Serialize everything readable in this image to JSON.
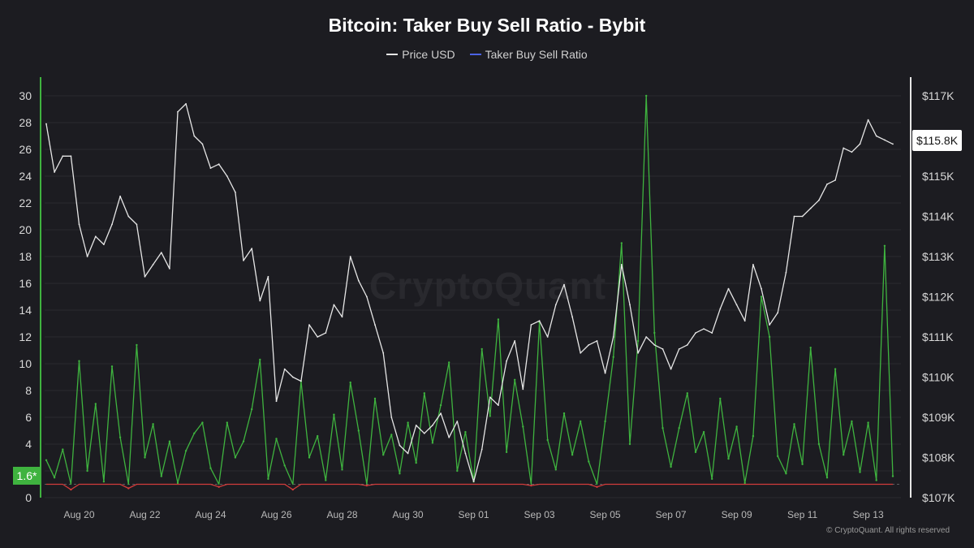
{
  "chart_data": {
    "type": "line",
    "title": "Bitcoin: Taker Buy Sell Ratio - Bybit",
    "legend_position": "top-center",
    "grid": true,
    "watermark": "CryptoQuant",
    "copyright": "© CryptoQuant. All rights reserved",
    "x_ticks": [
      "Aug 20",
      "Aug 22",
      "Aug 24",
      "Aug 26",
      "Aug 28",
      "Aug 30",
      "Sep 01",
      "Sep 03",
      "Sep 05",
      "Sep 07",
      "Sep 09",
      "Sep 11",
      "Sep 13"
    ],
    "x_range": [
      "2025-08-19",
      "2025-09-13"
    ],
    "left_axis": {
      "ticks": [
        "0",
        "2",
        "4",
        "6",
        "8",
        "10",
        "12",
        "14",
        "16",
        "18",
        "20",
        "22",
        "24",
        "26",
        "28",
        "30"
      ],
      "ylim": [
        0,
        30
      ]
    },
    "right_axis": {
      "ticks": [
        "$107K",
        "$108K",
        "$109K",
        "$110K",
        "$111K",
        "$112K",
        "$113K",
        "$114K",
        "$115K",
        "$116K",
        "$117K"
      ],
      "ylim": [
        107000,
        117000
      ]
    },
    "current_ratio_label": "1.6*",
    "current_price_label": "$115.8K",
    "baseline_value": 1,
    "colors": {
      "price": "#e6e6e6",
      "ratio_up": "#3fb33f",
      "ratio_down": "#d23b3b",
      "legend_ratio": "#4b63e6",
      "background": "#1c1c21",
      "grid": "#2a2a30"
    },
    "series": [
      {
        "name": "Price USD",
        "axis": "right",
        "points": [
          [
            "2025-08-19 00:00",
            116300
          ],
          [
            "2025-08-19 06:00",
            115100
          ],
          [
            "2025-08-19 12:00",
            115500
          ],
          [
            "2025-08-19 18:00",
            115500
          ],
          [
            "2025-08-20 00:00",
            113800
          ],
          [
            "2025-08-20 06:00",
            113000
          ],
          [
            "2025-08-20 12:00",
            113500
          ],
          [
            "2025-08-20 18:00",
            113300
          ],
          [
            "2025-08-21 00:00",
            113800
          ],
          [
            "2025-08-21 06:00",
            114500
          ],
          [
            "2025-08-21 12:00",
            114000
          ],
          [
            "2025-08-21 18:00",
            113800
          ],
          [
            "2025-08-22 00:00",
            112500
          ],
          [
            "2025-08-22 06:00",
            112800
          ],
          [
            "2025-08-22 12:00",
            113100
          ],
          [
            "2025-08-22 18:00",
            112700
          ],
          [
            "2025-08-23 00:00",
            116600
          ],
          [
            "2025-08-23 06:00",
            116800
          ],
          [
            "2025-08-23 12:00",
            116000
          ],
          [
            "2025-08-23 18:00",
            115800
          ],
          [
            "2025-08-24 00:00",
            115200
          ],
          [
            "2025-08-24 06:00",
            115300
          ],
          [
            "2025-08-24 12:00",
            115000
          ],
          [
            "2025-08-24 18:00",
            114600
          ],
          [
            "2025-08-25 00:00",
            112900
          ],
          [
            "2025-08-25 06:00",
            113200
          ],
          [
            "2025-08-25 12:00",
            111900
          ],
          [
            "2025-08-25 18:00",
            112500
          ],
          [
            "2025-08-26 00:00",
            109400
          ],
          [
            "2025-08-26 06:00",
            110200
          ],
          [
            "2025-08-26 12:00",
            110000
          ],
          [
            "2025-08-26 18:00",
            109900
          ],
          [
            "2025-08-27 00:00",
            111300
          ],
          [
            "2025-08-27 06:00",
            111000
          ],
          [
            "2025-08-27 12:00",
            111100
          ],
          [
            "2025-08-27 18:00",
            111800
          ],
          [
            "2025-08-28 00:00",
            111500
          ],
          [
            "2025-08-28 06:00",
            113000
          ],
          [
            "2025-08-28 12:00",
            112400
          ],
          [
            "2025-08-28 18:00",
            112000
          ],
          [
            "2025-08-29 00:00",
            111300
          ],
          [
            "2025-08-29 06:00",
            110600
          ],
          [
            "2025-08-29 12:00",
            109000
          ],
          [
            "2025-08-29 18:00",
            108300
          ],
          [
            "2025-08-30 00:00",
            108100
          ],
          [
            "2025-08-30 06:00",
            108800
          ],
          [
            "2025-08-30 12:00",
            108600
          ],
          [
            "2025-08-30 18:00",
            108800
          ],
          [
            "2025-08-31 00:00",
            109100
          ],
          [
            "2025-08-31 06:00",
            108500
          ],
          [
            "2025-08-31 12:00",
            108900
          ],
          [
            "2025-08-31 18:00",
            108100
          ],
          [
            "2025-09-01 00:00",
            107400
          ],
          [
            "2025-09-01 06:00",
            108200
          ],
          [
            "2025-09-01 12:00",
            109500
          ],
          [
            "2025-09-01 18:00",
            109300
          ],
          [
            "2025-09-02 00:00",
            110400
          ],
          [
            "2025-09-02 06:00",
            110900
          ],
          [
            "2025-09-02 12:00",
            109700
          ],
          [
            "2025-09-02 18:00",
            111300
          ],
          [
            "2025-09-03 00:00",
            111400
          ],
          [
            "2025-09-03 06:00",
            111000
          ],
          [
            "2025-09-03 12:00",
            111800
          ],
          [
            "2025-09-03 18:00",
            112300
          ],
          [
            "2025-09-04 00:00",
            111500
          ],
          [
            "2025-09-04 06:00",
            110600
          ],
          [
            "2025-09-04 12:00",
            110800
          ],
          [
            "2025-09-04 18:00",
            110900
          ],
          [
            "2025-09-05 00:00",
            110100
          ],
          [
            "2025-09-05 06:00",
            111000
          ],
          [
            "2025-09-05 12:00",
            112800
          ],
          [
            "2025-09-05 18:00",
            111800
          ],
          [
            "2025-09-06 00:00",
            110600
          ],
          [
            "2025-09-06 06:00",
            111000
          ],
          [
            "2025-09-06 12:00",
            110800
          ],
          [
            "2025-09-06 18:00",
            110700
          ],
          [
            "2025-09-07 00:00",
            110200
          ],
          [
            "2025-09-07 06:00",
            110700
          ],
          [
            "2025-09-07 12:00",
            110800
          ],
          [
            "2025-09-07 18:00",
            111100
          ],
          [
            "2025-09-08 00:00",
            111200
          ],
          [
            "2025-09-08 06:00",
            111100
          ],
          [
            "2025-09-08 12:00",
            111700
          ],
          [
            "2025-09-08 18:00",
            112200
          ],
          [
            "2025-09-09 00:00",
            111800
          ],
          [
            "2025-09-09 06:00",
            111400
          ],
          [
            "2025-09-09 12:00",
            112800
          ],
          [
            "2025-09-09 18:00",
            112200
          ],
          [
            "2025-09-10 00:00",
            111300
          ],
          [
            "2025-09-10 06:00",
            111600
          ],
          [
            "2025-09-10 12:00",
            112600
          ],
          [
            "2025-09-10 18:00",
            114000
          ],
          [
            "2025-09-11 00:00",
            114000
          ],
          [
            "2025-09-11 06:00",
            114200
          ],
          [
            "2025-09-11 12:00",
            114400
          ],
          [
            "2025-09-11 18:00",
            114800
          ],
          [
            "2025-09-12 00:00",
            114900
          ],
          [
            "2025-09-12 06:00",
            115700
          ],
          [
            "2025-09-12 12:00",
            115600
          ],
          [
            "2025-09-12 18:00",
            115800
          ],
          [
            "2025-09-13 00:00",
            116400
          ],
          [
            "2025-09-13 06:00",
            116000
          ],
          [
            "2025-09-13 12:00",
            115900
          ],
          [
            "2025-09-13 18:00",
            115800
          ]
        ]
      },
      {
        "name": "Taker Buy Sell Ratio",
        "axis": "left",
        "points": [
          [
            "2025-08-19 00:00",
            2.8
          ],
          [
            "2025-08-19 06:00",
            1.5
          ],
          [
            "2025-08-19 12:00",
            3.6
          ],
          [
            "2025-08-19 18:00",
            0.6
          ],
          [
            "2025-08-20 00:00",
            10.2
          ],
          [
            "2025-08-20 06:00",
            2.0
          ],
          [
            "2025-08-20 12:00",
            7.0
          ],
          [
            "2025-08-20 18:00",
            1.2
          ],
          [
            "2025-08-21 00:00",
            9.8
          ],
          [
            "2025-08-21 06:00",
            4.5
          ],
          [
            "2025-08-21 12:00",
            0.7
          ],
          [
            "2025-08-21 18:00",
            11.4
          ],
          [
            "2025-08-22 00:00",
            3.0
          ],
          [
            "2025-08-22 06:00",
            5.5
          ],
          [
            "2025-08-22 12:00",
            1.6
          ],
          [
            "2025-08-22 18:00",
            4.2
          ],
          [
            "2025-08-23 00:00",
            1.1
          ],
          [
            "2025-08-23 06:00",
            3.5
          ],
          [
            "2025-08-23 12:00",
            4.8
          ],
          [
            "2025-08-23 18:00",
            5.6
          ],
          [
            "2025-08-24 00:00",
            2.2
          ],
          [
            "2025-08-24 06:00",
            0.8
          ],
          [
            "2025-08-24 12:00",
            5.6
          ],
          [
            "2025-08-24 18:00",
            3.0
          ],
          [
            "2025-08-25 00:00",
            4.2
          ],
          [
            "2025-08-25 06:00",
            6.6
          ],
          [
            "2025-08-25 12:00",
            10.3
          ],
          [
            "2025-08-25 18:00",
            1.4
          ],
          [
            "2025-08-26 00:00",
            4.4
          ],
          [
            "2025-08-26 06:00",
            2.4
          ],
          [
            "2025-08-26 12:00",
            0.6
          ],
          [
            "2025-08-26 18:00",
            8.7
          ],
          [
            "2025-08-27 00:00",
            3.0
          ],
          [
            "2025-08-27 06:00",
            4.6
          ],
          [
            "2025-08-27 12:00",
            1.3
          ],
          [
            "2025-08-27 18:00",
            6.2
          ],
          [
            "2025-08-28 00:00",
            2.1
          ],
          [
            "2025-08-28 06:00",
            8.6
          ],
          [
            "2025-08-28 12:00",
            5.0
          ],
          [
            "2025-08-28 18:00",
            0.9
          ],
          [
            "2025-08-29 00:00",
            7.4
          ],
          [
            "2025-08-29 06:00",
            3.2
          ],
          [
            "2025-08-29 12:00",
            4.7
          ],
          [
            "2025-08-29 18:00",
            1.8
          ],
          [
            "2025-08-30 00:00",
            5.6
          ],
          [
            "2025-08-30 06:00",
            2.6
          ],
          [
            "2025-08-30 12:00",
            7.8
          ],
          [
            "2025-08-30 18:00",
            4.1
          ],
          [
            "2025-08-31 00:00",
            6.9
          ],
          [
            "2025-08-31 06:00",
            10.1
          ],
          [
            "2025-08-31 12:00",
            2.0
          ],
          [
            "2025-08-31 18:00",
            4.9
          ],
          [
            "2025-09-01 00:00",
            1.2
          ],
          [
            "2025-09-01 06:00",
            11.1
          ],
          [
            "2025-09-01 12:00",
            6.1
          ],
          [
            "2025-09-01 18:00",
            13.3
          ],
          [
            "2025-09-02 00:00",
            3.4
          ],
          [
            "2025-09-02 06:00",
            8.8
          ],
          [
            "2025-09-02 12:00",
            5.3
          ],
          [
            "2025-09-02 18:00",
            0.9
          ],
          [
            "2025-09-03 00:00",
            13.1
          ],
          [
            "2025-09-03 06:00",
            4.3
          ],
          [
            "2025-09-03 12:00",
            2.1
          ],
          [
            "2025-09-03 18:00",
            6.3
          ],
          [
            "2025-09-04 00:00",
            3.2
          ],
          [
            "2025-09-04 06:00",
            5.7
          ],
          [
            "2025-09-04 12:00",
            2.7
          ],
          [
            "2025-09-04 18:00",
            0.8
          ],
          [
            "2025-09-05 00:00",
            5.7
          ],
          [
            "2025-09-05 06:00",
            10.5
          ],
          [
            "2025-09-05 12:00",
            19.0
          ],
          [
            "2025-09-05 18:00",
            4.0
          ],
          [
            "2025-09-06 00:00",
            11.7
          ],
          [
            "2025-09-06 06:00",
            30.0
          ],
          [
            "2025-09-06 12:00",
            12.3
          ],
          [
            "2025-09-06 18:00",
            5.2
          ],
          [
            "2025-09-07 00:00",
            2.3
          ],
          [
            "2025-09-07 06:00",
            5.2
          ],
          [
            "2025-09-07 12:00",
            7.8
          ],
          [
            "2025-09-07 18:00",
            3.4
          ],
          [
            "2025-09-08 00:00",
            4.9
          ],
          [
            "2025-09-08 06:00",
            1.4
          ],
          [
            "2025-09-08 12:00",
            7.4
          ],
          [
            "2025-09-08 18:00",
            2.9
          ],
          [
            "2025-09-09 00:00",
            5.3
          ],
          [
            "2025-09-09 06:00",
            1.1
          ],
          [
            "2025-09-09 12:00",
            4.6
          ],
          [
            "2025-09-09 18:00",
            15.0
          ],
          [
            "2025-09-10 00:00",
            12.0
          ],
          [
            "2025-09-10 06:00",
            3.1
          ],
          [
            "2025-09-10 12:00",
            1.8
          ],
          [
            "2025-09-10 18:00",
            5.5
          ],
          [
            "2025-09-11 00:00",
            2.5
          ],
          [
            "2025-09-11 06:00",
            11.2
          ],
          [
            "2025-09-11 12:00",
            4.0
          ],
          [
            "2025-09-11 18:00",
            1.5
          ],
          [
            "2025-09-12 00:00",
            9.6
          ],
          [
            "2025-09-12 06:00",
            3.2
          ],
          [
            "2025-09-12 12:00",
            5.7
          ],
          [
            "2025-09-12 18:00",
            1.9
          ],
          [
            "2025-09-13 00:00",
            5.6
          ],
          [
            "2025-09-13 06:00",
            1.3
          ],
          [
            "2025-09-13 12:00",
            18.8
          ],
          [
            "2025-09-13 18:00",
            1.6
          ]
        ]
      }
    ]
  }
}
